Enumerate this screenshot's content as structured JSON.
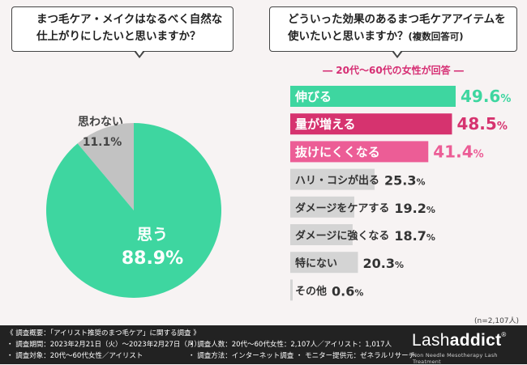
{
  "bubble_left": {
    "line1": "まつ毛ケア・メイクはなるべく自然な",
    "line2": "仕上がりにしたいと思いますか？"
  },
  "bubble_right": {
    "line1": "どういった効果のあるまつ毛ケアアイテムを",
    "line2": "使いたいと思いますか？",
    "line2_note": "(複数回答可)"
  },
  "subtitle": "― 20代～60代の女性が回答 ―",
  "colors": {
    "green": "#3ed6a0",
    "pie_gray": "#c2c2c2",
    "bar_gray": "#d4d4d4",
    "crimson": "#d6336f",
    "pink": "#ec5d96"
  },
  "chart_data": [
    {
      "type": "pie",
      "title": "まつ毛ケア・メイクはなるべく自然な仕上がりにしたいと思いますか？",
      "categories": [
        "思う",
        "思わない"
      ],
      "values": [
        88.9,
        11.1
      ],
      "value_labels": [
        "88.9%",
        "11.1%"
      ],
      "colors": [
        "#3ed6a0",
        "#c2c2c2"
      ]
    },
    {
      "type": "bar",
      "orientation": "horizontal",
      "title": "どういった効果のあるまつ毛ケアアイテムを使いたいと思いますか？(複数回答可)",
      "categories": [
        "伸びる",
        "量が増える",
        "抜けにくくなる",
        "ハリ・コシが出る",
        "ダメージをケアする",
        "ダメージに強くなる",
        "特にない",
        "その他"
      ],
      "values": [
        49.6,
        48.5,
        41.4,
        25.3,
        19.2,
        18.7,
        20.3,
        0.6
      ],
      "colors": [
        "#3ed6a0",
        "#d6336f",
        "#ec5d96",
        "#d4d4d4",
        "#d4d4d4",
        "#d4d4d4",
        "#d4d4d4",
        "#d4d4d4"
      ],
      "label_colors": [
        "#ffffff",
        "#ffffff",
        "#ffffff",
        "#333333",
        "#333333",
        "#333333",
        "#333333",
        "#333333"
      ],
      "value_colors": [
        "#3ed6a0",
        "#d6336f",
        "#ec5d96",
        "#333333",
        "#333333",
        "#333333",
        "#333333",
        "#333333"
      ],
      "xlim": [
        0,
        49.6
      ],
      "sample_size": "(n=2,107人)"
    }
  ],
  "footer": {
    "heading": "《 調査概要：「アイリスト推奨のまつ毛ケア」に関する調査 》",
    "period": "・ 調査期間：2023年2月21日（火）～2023年2月27日（月）",
    "target": "・ 調査対象：20代～60代女性／アイリスト",
    "count": "・ 調査人数：20代～60代女性：2,107人／アイリスト：1,017人",
    "method": "・ 調査方法：インターネット調査 ・ モニター提供元：ゼネラルリサーチ",
    "brand_part1": "Lash",
    "brand_part2": "addict",
    "brand_mark": "®",
    "brand_tagline": "Non Needle Mesotherapy Lash Treatment"
  }
}
